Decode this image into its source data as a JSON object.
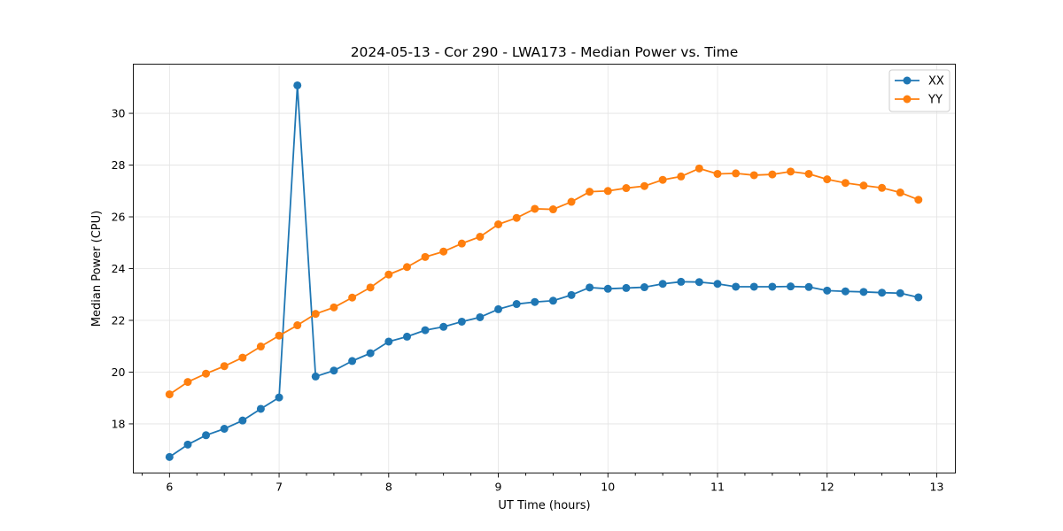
{
  "chart_data": {
    "type": "line",
    "title": "2024-05-13 - Cor 290 - LWA173 - Median Power vs. Time",
    "xlabel": "UT Time (hours)",
    "ylabel": "Median Power (CPU)",
    "xlim": [
      5.67,
      13.17
    ],
    "ylim": [
      16.1,
      31.9
    ],
    "xticks": [
      6,
      7,
      8,
      9,
      10,
      11,
      12,
      13
    ],
    "yticks": [
      18,
      20,
      22,
      24,
      26,
      28,
      30
    ],
    "x_minor_step": 0.25,
    "grid": true,
    "legend_position": "top-right",
    "x": [
      6.0,
      6.167,
      6.333,
      6.5,
      6.667,
      6.833,
      7.0,
      7.167,
      7.333,
      7.5,
      7.667,
      7.833,
      8.0,
      8.167,
      8.333,
      8.5,
      8.667,
      8.833,
      9.0,
      9.167,
      9.333,
      9.5,
      9.667,
      9.833,
      10.0,
      10.167,
      10.333,
      10.5,
      10.667,
      10.833,
      11.0,
      11.167,
      11.333,
      11.5,
      11.667,
      11.833,
      12.0,
      12.167,
      12.333,
      12.5,
      12.667,
      12.833
    ],
    "series": [
      {
        "name": "XX",
        "color": "#1f77b4",
        "values": [
          16.72,
          17.2,
          17.56,
          17.81,
          18.13,
          18.58,
          19.02,
          31.08,
          19.83,
          20.06,
          20.43,
          20.73,
          21.18,
          21.37,
          21.62,
          21.75,
          21.95,
          22.12,
          22.43,
          22.63,
          22.71,
          22.76,
          22.98,
          23.27,
          23.22,
          23.25,
          23.28,
          23.41,
          23.49,
          23.48,
          23.41,
          23.3,
          23.3,
          23.3,
          23.31,
          23.29,
          23.15,
          23.12,
          23.1,
          23.07,
          23.05,
          22.89
        ]
      },
      {
        "name": "YY",
        "color": "#ff7f0e",
        "values": [
          19.14,
          19.62,
          19.94,
          20.23,
          20.56,
          20.99,
          21.41,
          21.81,
          22.25,
          22.5,
          22.88,
          23.27,
          23.77,
          24.06,
          24.45,
          24.66,
          24.97,
          25.23,
          25.71,
          25.96,
          26.31,
          26.29,
          26.58,
          26.97,
          27.0,
          27.11,
          27.19,
          27.43,
          27.56,
          27.87,
          27.66,
          27.68,
          27.61,
          27.64,
          27.75,
          27.66,
          27.45,
          27.31,
          27.21,
          27.12,
          26.94,
          26.66
        ]
      }
    ]
  }
}
